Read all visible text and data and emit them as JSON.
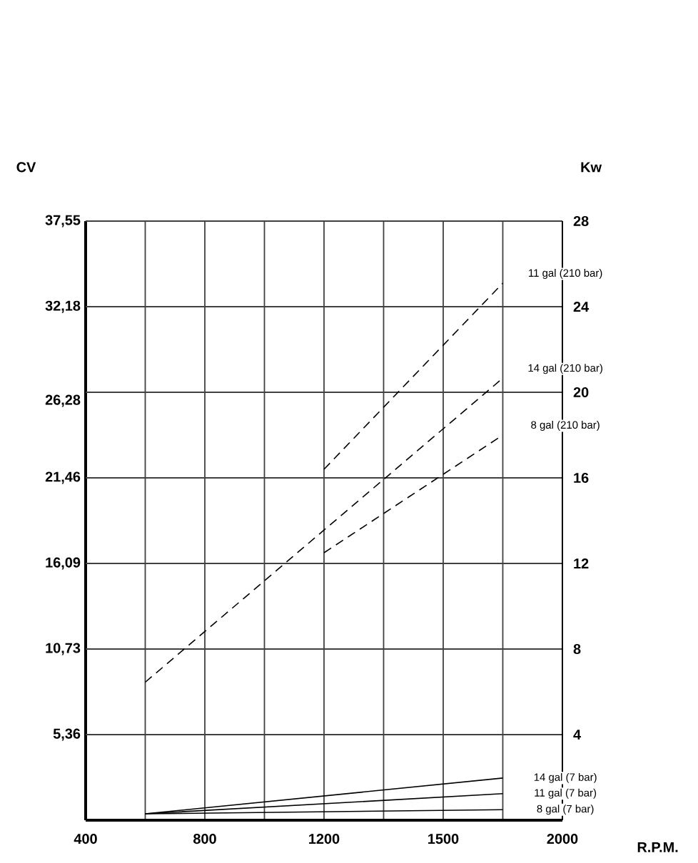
{
  "chart_data": {
    "type": "line",
    "xlabel": "R.P.M.",
    "ylabel": "CV",
    "y2label": "Kw",
    "categories": [
      "400",
      null,
      "800",
      null,
      "1200",
      null,
      "1500",
      null,
      "2000"
    ],
    "ylim": [
      0,
      37.55
    ],
    "yticks": [
      {
        "value": 5.36,
        "label": "5,36"
      },
      {
        "value": 10.73,
        "label": "10,73"
      },
      {
        "value": 16.09,
        "label": "16,09"
      },
      {
        "value": 21.46,
        "label": "21,46"
      },
      {
        "value": 26.28,
        "label": "26,28"
      },
      {
        "value": 32.18,
        "label": "32,18"
      },
      {
        "value": 37.55,
        "label": "37,55"
      }
    ],
    "y2lim": [
      0,
      28
    ],
    "y2ticks": [
      4,
      8,
      12,
      16,
      20,
      24,
      28
    ],
    "grid": true,
    "marker": "none",
    "series": [
      {
        "name": "11 gal (210 bar)",
        "color": "#000000",
        "line_style": "dashed",
        "axis": "y2",
        "values": [
          null,
          null,
          null,
          null,
          16.4,
          null,
          null,
          25.1,
          null
        ]
      },
      {
        "name": "14 gal (210 bar)",
        "color": "#000000",
        "line_style": "dashed",
        "axis": "y2",
        "values": [
          null,
          6.45,
          null,
          null,
          13.56,
          null,
          null,
          20.66,
          null
        ]
      },
      {
        "name": "8 gal (210 bar)",
        "color": "#000000",
        "line_style": "dashed",
        "axis": "y2",
        "values": [
          null,
          null,
          null,
          null,
          12.5,
          null,
          null,
          18.0,
          null
        ]
      },
      {
        "name": "14 gal (7 bar)",
        "color": "#000000",
        "line_style": "solid",
        "axis": "y2",
        "values": [
          null,
          0.3,
          null,
          null,
          null,
          null,
          null,
          1.97,
          null
        ]
      },
      {
        "name": "11 gal (7 bar)",
        "color": "#000000",
        "line_style": "solid",
        "axis": "y2",
        "values": [
          null,
          0.3,
          null,
          null,
          null,
          null,
          null,
          1.24,
          null
        ]
      },
      {
        "name": "8 gal (7 bar)",
        "color": "#000000",
        "line_style": "solid",
        "axis": "y2",
        "values": [
          null,
          0.3,
          null,
          null,
          null,
          null,
          null,
          0.49,
          null
        ]
      }
    ]
  }
}
